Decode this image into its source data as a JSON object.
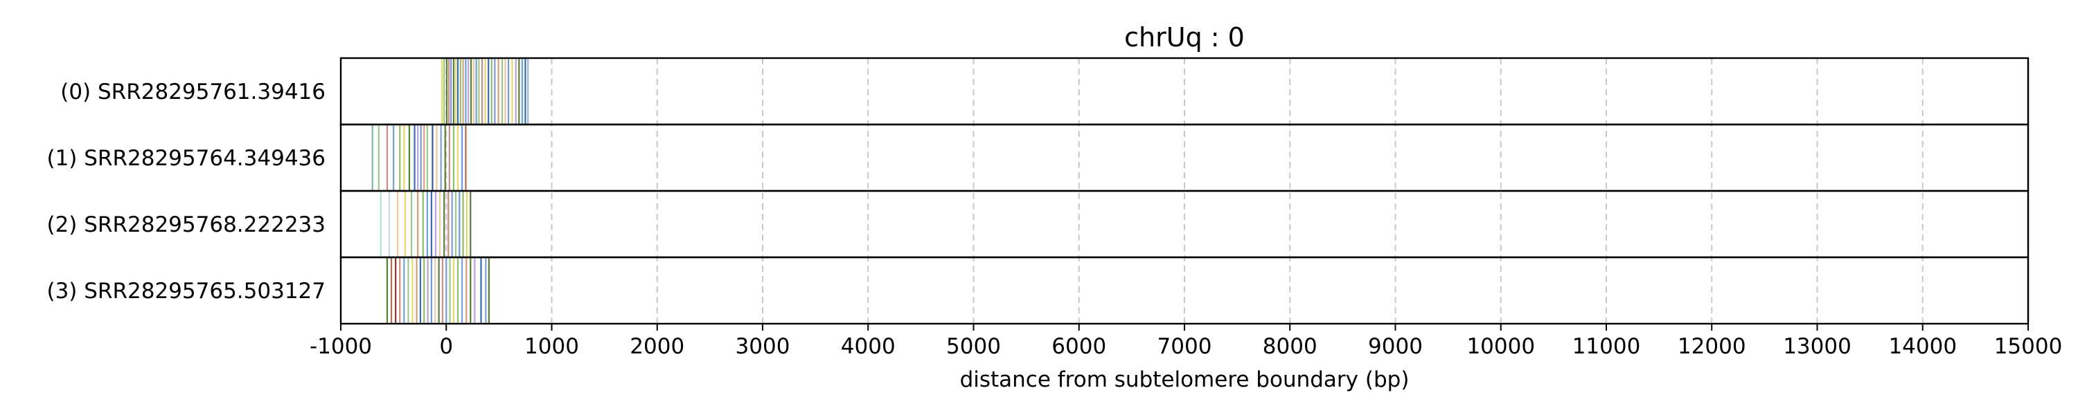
{
  "chart_data": {
    "type": "barcode",
    "title": "chrUq : 0",
    "xlabel": "distance from subtelomere boundary (bp)",
    "xlim": [
      -1000,
      15000
    ],
    "xticks": [
      -1000,
      0,
      1000,
      2000,
      3000,
      4000,
      5000,
      6000,
      7000,
      8000,
      9000,
      10000,
      11000,
      12000,
      13000,
      14000,
      15000
    ],
    "xtick_labels": [
      "-1000",
      "0",
      "1000",
      "2000",
      "3000",
      "4000",
      "5000",
      "6000",
      "7000",
      "8000",
      "9000",
      "10000",
      "11000",
      "12000",
      "13000",
      "14000",
      "15000"
    ],
    "grid": "x-dashed",
    "rows": [
      {
        "label": "(0) SRR28295761.39416",
        "marks": [
          {
            "x": -40,
            "color": "#e6d96b"
          },
          {
            "x": -20,
            "color": "#9dc98a"
          },
          {
            "x": 5,
            "color": "#5a7d3a"
          },
          {
            "x": 25,
            "color": "#c98a8a"
          },
          {
            "x": 45,
            "color": "#7a9fd6"
          },
          {
            "x": 70,
            "color": "#5a7d3a"
          },
          {
            "x": 90,
            "color": "#e6d96b"
          },
          {
            "x": 110,
            "color": "#3b6bb5"
          },
          {
            "x": 135,
            "color": "#8fbf6e"
          },
          {
            "x": 160,
            "color": "#d8a07a"
          },
          {
            "x": 185,
            "color": "#6e9fd0"
          },
          {
            "x": 210,
            "color": "#b7a4d8"
          },
          {
            "x": 235,
            "color": "#5a7d3a"
          },
          {
            "x": 260,
            "color": "#e8c9a0"
          },
          {
            "x": 285,
            "color": "#6fa3d9"
          },
          {
            "x": 310,
            "color": "#9dc98a"
          },
          {
            "x": 340,
            "color": "#c98a8a"
          },
          {
            "x": 370,
            "color": "#e6d96b"
          },
          {
            "x": 400,
            "color": "#3b6bb5"
          },
          {
            "x": 430,
            "color": "#8fbf6e"
          },
          {
            "x": 460,
            "color": "#7a9fd6"
          },
          {
            "x": 495,
            "color": "#d8a07a"
          },
          {
            "x": 530,
            "color": "#9dc98a"
          },
          {
            "x": 560,
            "color": "#e8c9a0"
          },
          {
            "x": 590,
            "color": "#6e9fd0"
          },
          {
            "x": 625,
            "color": "#e6d96b"
          },
          {
            "x": 660,
            "color": "#b7a4d8"
          },
          {
            "x": 690,
            "color": "#5a7d3a"
          },
          {
            "x": 720,
            "color": "#6fa3d9"
          },
          {
            "x": 750,
            "color": "#3b6bb5"
          },
          {
            "x": 775,
            "color": "#9db6d8"
          }
        ]
      },
      {
        "label": "(1) SRR28295764.349436",
        "marks": [
          {
            "x": -700,
            "color": "#7fb8b0"
          },
          {
            "x": -640,
            "color": "#9dc98a"
          },
          {
            "x": -560,
            "color": "#c98a8a"
          },
          {
            "x": -500,
            "color": "#6fa3d9"
          },
          {
            "x": -440,
            "color": "#8fbf6e"
          },
          {
            "x": -400,
            "color": "#e6d96b"
          },
          {
            "x": -350,
            "color": "#5a7d3a"
          },
          {
            "x": -300,
            "color": "#3b6bb5"
          },
          {
            "x": -270,
            "color": "#b7a4d8"
          },
          {
            "x": -240,
            "color": "#6e9fd0"
          },
          {
            "x": -210,
            "color": "#d8a07a"
          },
          {
            "x": -180,
            "color": "#9dc98a"
          },
          {
            "x": -130,
            "color": "#3b5a9a"
          },
          {
            "x": -90,
            "color": "#e8c9a0"
          },
          {
            "x": -50,
            "color": "#7a9fd6"
          },
          {
            "x": -10,
            "color": "#5a7d3a"
          },
          {
            "x": 30,
            "color": "#c98a8a"
          },
          {
            "x": 70,
            "color": "#8fbf6e"
          },
          {
            "x": 110,
            "color": "#e6d96b"
          },
          {
            "x": 150,
            "color": "#6e9fd0"
          },
          {
            "x": 185,
            "color": "#b06b4a"
          }
        ]
      },
      {
        "label": "(2) SRR28295768.222233",
        "marks": [
          {
            "x": -620,
            "color": "#b7e0d8"
          },
          {
            "x": -540,
            "color": "#c9d9e8"
          },
          {
            "x": -460,
            "color": "#f2c9a0"
          },
          {
            "x": -390,
            "color": "#e6d96b"
          },
          {
            "x": -330,
            "color": "#9dc98a"
          },
          {
            "x": -270,
            "color": "#d8a07a"
          },
          {
            "x": -220,
            "color": "#8fbf6e"
          },
          {
            "x": -180,
            "color": "#6fa3d9"
          },
          {
            "x": -140,
            "color": "#3b6bb5"
          },
          {
            "x": -100,
            "color": "#b7a4d8"
          },
          {
            "x": -60,
            "color": "#e8c9a0"
          },
          {
            "x": -20,
            "color": "#5a7d3a"
          },
          {
            "x": 20,
            "color": "#c98a8a"
          },
          {
            "x": 55,
            "color": "#7a9fd6"
          },
          {
            "x": 90,
            "color": "#9dc98a"
          },
          {
            "x": 125,
            "color": "#6e9fd0"
          },
          {
            "x": 160,
            "color": "#8fbf6e"
          },
          {
            "x": 195,
            "color": "#e6d96b"
          },
          {
            "x": 230,
            "color": "#5a7d3a"
          }
        ]
      },
      {
        "label": "(3) SRR28295765.503127",
        "marks": [
          {
            "x": -560,
            "color": "#5a7d3a"
          },
          {
            "x": -520,
            "color": "#b06b4a"
          },
          {
            "x": -480,
            "color": "#8b2f2f"
          },
          {
            "x": -440,
            "color": "#c98a8a"
          },
          {
            "x": -400,
            "color": "#6fa3d9"
          },
          {
            "x": -360,
            "color": "#9dc98a"
          },
          {
            "x": -320,
            "color": "#e6d96b"
          },
          {
            "x": -280,
            "color": "#d8a07a"
          },
          {
            "x": -245,
            "color": "#3b6bb5"
          },
          {
            "x": -210,
            "color": "#8fbf6e"
          },
          {
            "x": -175,
            "color": "#b7a4d8"
          },
          {
            "x": -140,
            "color": "#6e9fd0"
          },
          {
            "x": -105,
            "color": "#e8c9a0"
          },
          {
            "x": -70,
            "color": "#5a7d3a"
          },
          {
            "x": -35,
            "color": "#c98a8a"
          },
          {
            "x": 0,
            "color": "#7a9fd6"
          },
          {
            "x": 35,
            "color": "#9dc98a"
          },
          {
            "x": 70,
            "color": "#e6d96b"
          },
          {
            "x": 110,
            "color": "#8fbf6e"
          },
          {
            "x": 150,
            "color": "#6fa3d9"
          },
          {
            "x": 190,
            "color": "#d8a07a"
          },
          {
            "x": 230,
            "color": "#5a7d3a"
          },
          {
            "x": 270,
            "color": "#b7a4d8"
          },
          {
            "x": 330,
            "color": "#3b6bb5"
          },
          {
            "x": 375,
            "color": "#7a9fd6"
          },
          {
            "x": 405,
            "color": "#5a7d3a"
          }
        ]
      }
    ]
  }
}
